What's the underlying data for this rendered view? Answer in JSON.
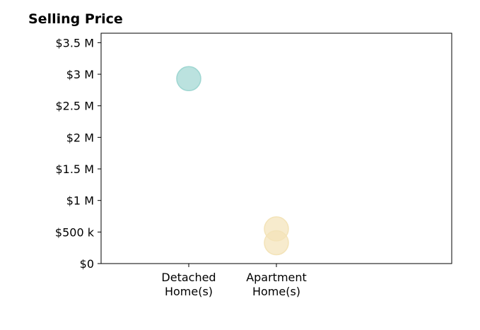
{
  "chart_data": {
    "type": "scatter",
    "title": "Selling Price",
    "xlabel": "",
    "ylabel": "",
    "categories": [
      "Detached\nHome(s)",
      "Apartment\nHome(s)"
    ],
    "ylim": [
      0,
      3650000
    ],
    "yticks": [
      0,
      500000,
      1000000,
      1500000,
      2000000,
      2500000,
      3000000,
      3500000
    ],
    "ytick_labels": [
      "$0",
      "$500 k",
      "$1 M",
      "$1.5 M",
      "$2 M",
      "$2.5 M",
      "$3 M",
      "$3.5 M"
    ],
    "grid": false,
    "legend": "none",
    "series": [
      {
        "category": "Detached\nHome(s)",
        "color": "#9ed6d1",
        "values": [
          2930000
        ]
      },
      {
        "category": "Apartment\nHome(s)",
        "color": "#f3e3b8",
        "values": [
          550000,
          330000
        ]
      }
    ]
  }
}
